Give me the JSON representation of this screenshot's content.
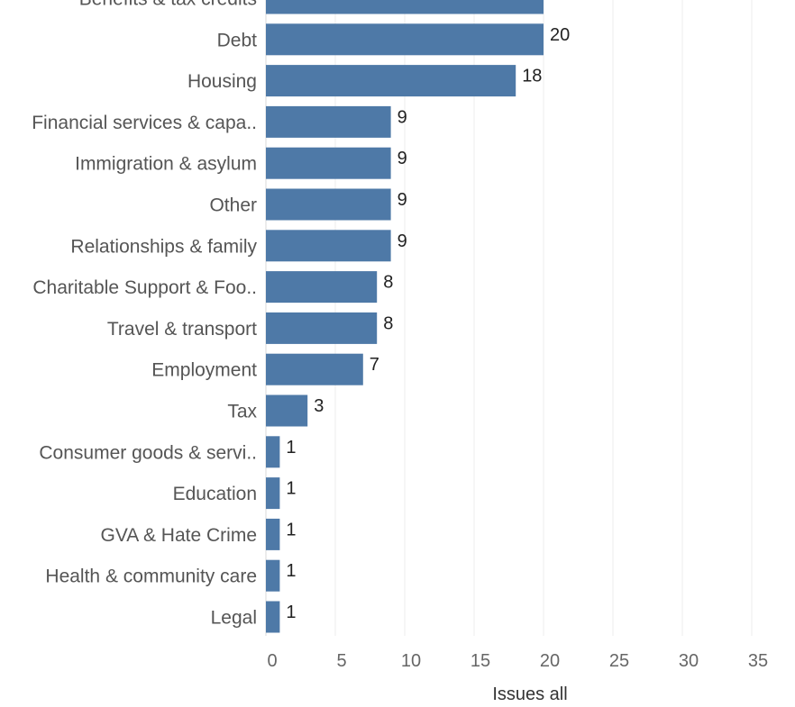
{
  "chart_data": {
    "type": "bar",
    "orientation": "horizontal",
    "title": "",
    "xlabel": "Issues all",
    "ylabel": "",
    "xlim": [
      0,
      38
    ],
    "ticks": [
      0,
      5,
      10,
      15,
      20,
      25,
      30,
      35
    ],
    "grid": "vertical",
    "bar_color": "#4e79a7",
    "categories": [
      "Benefits & tax credits",
      "Debt",
      "Housing",
      "Financial services & capa..",
      "Immigration & asylum",
      "Other",
      "Relationships & family",
      "Charitable Support & Foo..",
      "Travel & transport",
      "Employment",
      "Tax",
      "Consumer goods & servi..",
      "Education",
      "GVA & Hate Crime",
      "Health & community care",
      "Legal"
    ],
    "values": [
      20,
      20,
      18,
      9,
      9,
      9,
      9,
      8,
      8,
      7,
      3,
      1,
      1,
      1,
      1,
      1
    ]
  }
}
